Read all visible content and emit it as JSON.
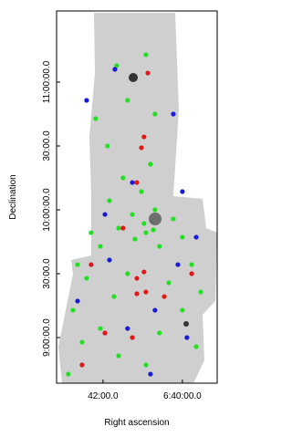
{
  "chart_data": {
    "type": "scatter",
    "x_label": "Right ascension",
    "y_label": "Declination",
    "xlim": [
      6.7195,
      6.6521
    ],
    "ylim": [
      8.643,
      11.557
    ],
    "xticks": [
      {
        "value": 6.7,
        "label": "42:00.0"
      },
      {
        "value": 6.6667,
        "label": "6:40:00.0"
      }
    ],
    "yticks": [
      {
        "value": 9.0,
        "label": "9:00:00.0"
      },
      {
        "value": 9.5,
        "label": "30:00.0"
      },
      {
        "value": 10.0,
        "label": "10:00:00.0"
      },
      {
        "value": 10.5,
        "label": "30:00.0"
      },
      {
        "value": 11.0,
        "label": "11:00:00.0"
      }
    ],
    "series": [
      {
        "color": "#22e022",
        "x": [
          6.6943,
          6.682,
          6.7031,
          6.6897,
          6.6782,
          6.6981,
          6.6801,
          6.6916,
          6.6839,
          6.6973,
          6.6877,
          6.6782,
          6.6705,
          6.6935,
          6.705,
          6.682,
          6.6667,
          6.7011,
          6.6763,
          6.7107,
          6.6628,
          6.6897,
          6.7069,
          6.6724,
          6.659,
          6.6954,
          6.7126,
          6.6667,
          6.7011,
          6.6763,
          6.7088,
          6.6609,
          6.6935,
          6.682,
          6.7146,
          6.6866,
          6.6828,
          6.6789
        ],
        "values": [
          11.129,
          11.214,
          10.714,
          10.857,
          10.75,
          10.5,
          10.357,
          10.25,
          10.143,
          10.071,
          9.964,
          10.0,
          9.929,
          9.857,
          9.821,
          9.821,
          9.786,
          9.714,
          9.714,
          9.571,
          9.571,
          9.5,
          9.464,
          9.429,
          9.357,
          9.321,
          9.214,
          9.214,
          9.071,
          9.036,
          8.964,
          8.929,
          8.857,
          8.786,
          8.714,
          9.771,
          9.893,
          9.843
        ]
      },
      {
        "color": "#e01818",
        "x": [
          6.6812,
          6.6828,
          6.6839,
          6.6858,
          6.6916,
          6.6828,
          6.6858,
          6.682,
          6.6858,
          6.6743,
          6.6628,
          6.705,
          6.6992,
          6.6877,
          6.7088
        ],
        "values": [
          11.071,
          10.571,
          10.486,
          10.214,
          9.857,
          9.514,
          9.464,
          9.357,
          9.343,
          9.321,
          9.5,
          9.571,
          9.036,
          9.0,
          8.786
        ]
      },
      {
        "color": "#1a1ad8",
        "x": [
          6.695,
          6.7069,
          6.6705,
          6.6877,
          6.6667,
          6.6992,
          6.6609,
          6.6686,
          6.6973,
          6.6782,
          6.6648,
          6.7107,
          6.6897,
          6.6801
        ],
        "values": [
          11.1,
          10.857,
          10.75,
          10.214,
          10.143,
          9.964,
          9.786,
          9.571,
          9.607,
          9.214,
          9.0,
          9.286,
          9.071,
          8.714
        ]
      }
    ]
  }
}
